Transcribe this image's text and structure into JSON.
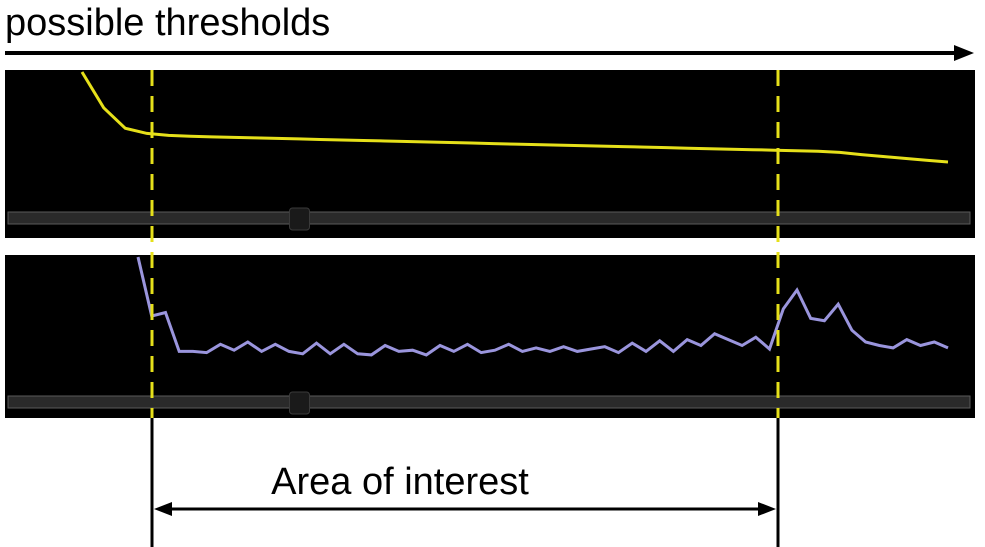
{
  "header": {
    "label": "possible thresholds"
  },
  "annotation": {
    "label": "Area of interest"
  },
  "colors": {
    "background": "#ffffff",
    "panel": "#000000",
    "top_curve": "#e6e01a",
    "bottom_curve": "#9a95dd",
    "marker_line": "#e6e01a",
    "slider_track": "#2a2a2a",
    "slider_handle": "#1a1a1a",
    "arrow": "#000000"
  },
  "sliders": {
    "top_value": 0.303,
    "bottom_value": 0.303
  },
  "chart_data": [
    {
      "type": "line",
      "series": [
        {
          "values": [
            1.0,
            0.72,
            0.56,
            0.52,
            0.505,
            0.498,
            0.493,
            0.489,
            0.485,
            0.481,
            0.477,
            0.473,
            0.469,
            0.465,
            0.461,
            0.457,
            0.453,
            0.449,
            0.445,
            0.441,
            0.437,
            0.433,
            0.429,
            0.425,
            0.421,
            0.417,
            0.413,
            0.409,
            0.405,
            0.401,
            0.397,
            0.393,
            0.389,
            0.385,
            0.381,
            0.372,
            0.355,
            0.34,
            0.325,
            0.31,
            0.297
          ]
        }
      ]
    },
    {
      "type": "line",
      "series": [
        {
          "values": [
            1.0,
            0.5,
            0.53,
            0.2,
            0.2,
            0.19,
            0.26,
            0.21,
            0.28,
            0.2,
            0.26,
            0.2,
            0.18,
            0.27,
            0.18,
            0.26,
            0.18,
            0.17,
            0.25,
            0.2,
            0.21,
            0.17,
            0.25,
            0.2,
            0.26,
            0.19,
            0.21,
            0.26,
            0.2,
            0.23,
            0.2,
            0.24,
            0.2,
            0.22,
            0.24,
            0.19,
            0.27,
            0.2,
            0.29,
            0.2,
            0.3,
            0.25,
            0.35,
            0.3,
            0.25,
            0.32,
            0.22,
            0.56,
            0.72,
            0.48,
            0.46,
            0.6,
            0.38,
            0.28,
            0.25,
            0.23,
            0.3,
            0.25,
            0.28,
            0.23
          ]
        }
      ]
    }
  ]
}
